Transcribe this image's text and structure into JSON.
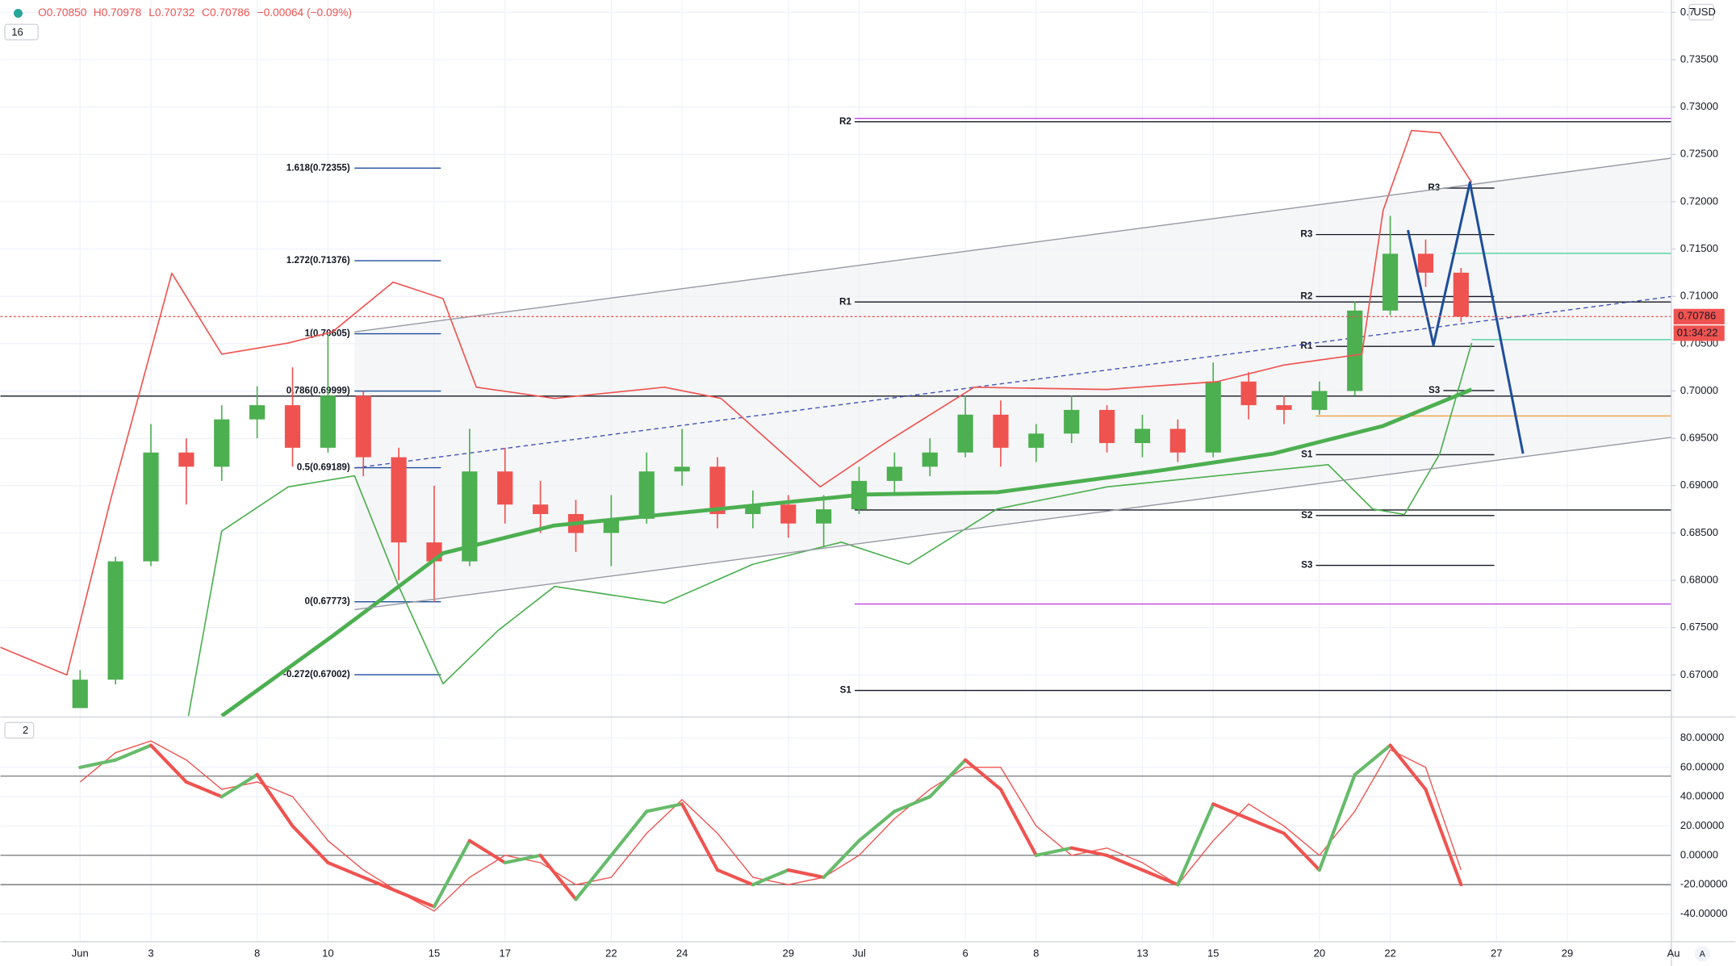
{
  "chart_data": {
    "type": "candlestick",
    "header": {
      "open": "O0.70850",
      "high": "H0.70978",
      "low": "L0.70732",
      "close": "C0.70786",
      "change": "−0.00064 (−0.09%)",
      "main_count": "16",
      "osc_count": "2",
      "currency": "USD",
      "auto": "A"
    },
    "last_price": {
      "value": 0.70786,
      "label": "0.70786",
      "timer": "01:34:22"
    },
    "xlim": [
      -2.25,
      44.94
    ],
    "xticks": [
      {
        "value": 0,
        "label": "Jun"
      },
      {
        "value": 2,
        "label": "3"
      },
      {
        "value": 5,
        "label": "8"
      },
      {
        "value": 7,
        "label": "10"
      },
      {
        "value": 10,
        "label": "15"
      },
      {
        "value": 12,
        "label": "17"
      },
      {
        "value": 15,
        "label": "22"
      },
      {
        "value": 17,
        "label": "24"
      },
      {
        "value": 20,
        "label": "29"
      },
      {
        "value": 22,
        "label": "Jul"
      },
      {
        "value": 25,
        "label": "6"
      },
      {
        "value": 27,
        "label": "8"
      },
      {
        "value": 30,
        "label": "13"
      },
      {
        "value": 32,
        "label": "15"
      },
      {
        "value": 35,
        "label": "20"
      },
      {
        "value": 37,
        "label": "22"
      },
      {
        "value": 40,
        "label": "27"
      },
      {
        "value": 42,
        "label": "29"
      },
      {
        "value": 45,
        "label": "Au"
      }
    ],
    "ylim": [
      0.66567,
      0.74131
    ],
    "yticks": [
      {
        "value": 0.67,
        "label": "0.67000"
      },
      {
        "value": 0.675,
        "label": "0.67500"
      },
      {
        "value": 0.68,
        "label": "0.68000"
      },
      {
        "value": 0.685,
        "label": "0.68500"
      },
      {
        "value": 0.69,
        "label": "0.69000"
      },
      {
        "value": 0.695,
        "label": "0.69500"
      },
      {
        "value": 0.7,
        "label": "0.70000"
      },
      {
        "value": 0.705,
        "label": "0.70500"
      },
      {
        "value": 0.71,
        "label": "0.71000"
      },
      {
        "value": 0.715,
        "label": "0.71500"
      },
      {
        "value": 0.72,
        "label": "0.72000"
      },
      {
        "value": 0.725,
        "label": "0.72500"
      },
      {
        "value": 0.73,
        "label": "0.73000"
      },
      {
        "value": 0.735,
        "label": "0.73500"
      },
      {
        "value": 0.74,
        "label": "0.7"
      }
    ],
    "candles": {
      "x": [
        0,
        1,
        2,
        3,
        4,
        5,
        6,
        7,
        8,
        9,
        10,
        11,
        12,
        13,
        14,
        15,
        16,
        17,
        18,
        19,
        20,
        21,
        22,
        23,
        24,
        25,
        26,
        27,
        28,
        29,
        30,
        31,
        32,
        33,
        34,
        35,
        36,
        37,
        38,
        39
      ],
      "open": [
        0.6665,
        0.6695,
        0.682,
        0.6935,
        0.692,
        0.697,
        0.6985,
        0.694,
        0.6995,
        0.693,
        0.684,
        0.682,
        0.6915,
        0.688,
        0.687,
        0.685,
        0.6865,
        0.6915,
        0.692,
        0.687,
        0.688,
        0.686,
        0.6875,
        0.6905,
        0.692,
        0.6935,
        0.6975,
        0.694,
        0.6955,
        0.698,
        0.6945,
        0.696,
        0.6935,
        0.701,
        0.6985,
        0.698,
        0.7,
        0.7085,
        0.7145,
        0.7125
      ],
      "high": [
        0.6705,
        0.6825,
        0.6965,
        0.695,
        0.6985,
        0.7005,
        0.7025,
        0.706,
        0.7,
        0.694,
        0.69,
        0.696,
        0.694,
        0.6905,
        0.6885,
        0.689,
        0.6935,
        0.696,
        0.693,
        0.6895,
        0.689,
        0.689,
        0.692,
        0.6935,
        0.695,
        0.6995,
        0.699,
        0.6965,
        0.6995,
        0.6985,
        0.6975,
        0.697,
        0.703,
        0.702,
        0.6995,
        0.701,
        0.7095,
        0.7185,
        0.716,
        0.713
      ],
      "low": [
        0.6665,
        0.669,
        0.6815,
        0.688,
        0.6905,
        0.695,
        0.692,
        0.6935,
        0.691,
        0.68,
        0.6777,
        0.6815,
        0.686,
        0.685,
        0.683,
        0.6815,
        0.686,
        0.69,
        0.6855,
        0.6855,
        0.6845,
        0.6835,
        0.687,
        0.689,
        0.691,
        0.693,
        0.692,
        0.6925,
        0.6945,
        0.6935,
        0.693,
        0.6925,
        0.693,
        0.697,
        0.6965,
        0.6975,
        0.6995,
        0.708,
        0.711,
        0.7073
      ],
      "close": [
        0.6695,
        0.682,
        0.6935,
        0.692,
        0.697,
        0.6985,
        0.694,
        0.6995,
        0.693,
        0.684,
        0.682,
        0.6915,
        0.688,
        0.687,
        0.685,
        0.6865,
        0.6915,
        0.692,
        0.687,
        0.688,
        0.686,
        0.6875,
        0.6905,
        0.692,
        0.6935,
        0.6975,
        0.694,
        0.6955,
        0.698,
        0.6945,
        0.696,
        0.6935,
        0.701,
        0.6985,
        0.698,
        0.7,
        0.7085,
        0.7145,
        0.7125,
        0.70786
      ],
      "up_color": "#4caf50",
      "down_color": "#ef5350"
    },
    "lines": [
      {
        "name_color": "ma",
        "color": "#4caf50",
        "width": 3.5,
        "x": [
          4,
          7.125,
          10.25,
          13.375,
          18.06,
          22.125,
          25.9,
          30.56,
          33.69,
          36.8,
          39.3
        ],
        "values": [
          0.66567,
          0.6741,
          0.68286,
          0.68578,
          0.68754,
          0.68906,
          0.6893,
          0.69163,
          0.69338,
          0.69631,
          0.70016
        ]
      },
      {
        "name_color": "upper",
        "color": "#ef5350",
        "width": 1.2,
        "x": [
          -2.25,
          -0.375,
          0.875,
          2.59,
          4,
          5.875,
          7.125,
          8.84,
          10.25,
          11.19,
          13.4,
          16.5,
          18.1,
          20.9,
          22.75,
          25.25,
          29,
          32.1,
          34,
          36.2,
          36.8,
          37.6,
          38.4,
          39.3
        ],
        "values": [
          0.67292,
          0.67,
          0.68871,
          0.71244,
          0.7039,
          0.70507,
          0.70624,
          0.7115,
          0.70975,
          0.7004,
          0.69922,
          0.7004,
          0.69922,
          0.68987,
          0.69455,
          0.7004,
          0.70016,
          0.70098,
          0.70274,
          0.7039,
          0.7191,
          0.72752,
          0.72728,
          0.72202
        ]
      },
      {
        "name_color": "lower",
        "color": "#4caf50",
        "width": 1.2,
        "x": [
          3.06,
          4,
          5.875,
          7.75,
          9,
          10.25,
          11.8,
          13.4,
          16.5,
          19,
          21.5,
          23.4,
          25.9,
          29,
          32.1,
          35.25,
          36.5,
          37.4,
          38.4,
          39.3
        ],
        "values": [
          0.66567,
          0.6852,
          0.68987,
          0.69104,
          0.67935,
          0.66907,
          0.67468,
          0.67935,
          0.6776,
          0.68169,
          0.68403,
          0.68169,
          0.68754,
          0.68987,
          0.69104,
          0.69221,
          0.68754,
          0.68695,
          0.69338,
          0.70507
        ]
      },
      {
        "name_color": "channel",
        "color": "#9598a1",
        "width": 1,
        "x": [
          7.75,
          44.94
        ],
        "values": [
          0.70624,
          0.7246
        ]
      },
      {
        "name_color": "channel",
        "color": "#9598a1",
        "width": 1,
        "x": [
          7.75,
          44.94
        ],
        "values": [
          0.6769,
          0.6951
        ]
      },
      {
        "name_color": "projection",
        "color": "#1e4e9c",
        "width": 2.2,
        "x": [
          37.5,
          38.22,
          39.25,
          40.75
        ],
        "values": [
          0.717,
          0.70484,
          0.72202,
          0.69338
        ]
      }
    ],
    "midline": {
      "x": [
        7.75,
        44.94
      ],
      "values": [
        0.69186,
        0.70998
      ],
      "color": "#3f51b5"
    },
    "fib": [
      {
        "value": 0.72355,
        "label": "1.618(0.72355)"
      },
      {
        "value": 0.71376,
        "label": "1.272(0.71376)"
      },
      {
        "value": 0.70605,
        "label": "1(0.70605)"
      },
      {
        "value": 0.69999,
        "label": "0.786(0.69999)"
      },
      {
        "value": 0.69189,
        "label": "0.5(0.69189)"
      },
      {
        "value": 0.67773,
        "label": "0(0.67773)"
      },
      {
        "value": 0.67002,
        "label": "-0.272(0.67002)"
      }
    ],
    "fib_x": [
      7.75,
      10.19
    ],
    "pivots": [
      {
        "value": 0.72845,
        "label": "R2",
        "x": [
          21.875,
          44.94
        ]
      },
      {
        "value": 0.7094,
        "label": "R1",
        "x": [
          21.875,
          44.94
        ]
      },
      {
        "value": 0.66836,
        "label": "S1",
        "x": [
          21.875,
          44.94
        ]
      },
      {
        "value": 0.72144,
        "label": "R3",
        "x": [
          38.5,
          39.94
        ]
      },
      {
        "value": 0.71653,
        "label": "R3",
        "x": [
          34.9,
          39.94
        ]
      },
      {
        "value": 0.70998,
        "label": "R2",
        "x": [
          34.9,
          39.94
        ]
      },
      {
        "value": 0.70472,
        "label": "R1",
        "x": [
          34.9,
          39.94
        ]
      },
      {
        "value": 0.70005,
        "label": "S3",
        "x": [
          38.5,
          39.94
        ]
      },
      {
        "value": 0.69327,
        "label": "S1",
        "x": [
          34.9,
          39.94
        ]
      },
      {
        "value": 0.68684,
        "label": "S2",
        "x": [
          34.9,
          39.94
        ]
      },
      {
        "value": 0.68158,
        "label": "S3",
        "x": [
          34.9,
          39.94
        ]
      }
    ],
    "levels": [
      {
        "value": 0.7288,
        "color": "#c040e0",
        "x": [
          21.875,
          44.94
        ]
      },
      {
        "value": 0.6775,
        "color": "#c040e0",
        "x": [
          21.875,
          44.94
        ]
      },
      {
        "value": 0.69946,
        "color": "#131722",
        "x": [
          -2.25,
          44.94
        ]
      },
      {
        "value": 0.68743,
        "color": "#131722",
        "x": [
          21.875,
          44.94
        ]
      },
      {
        "value": 0.71454,
        "color": "#4dd0a0",
        "x": [
          38.7,
          44.94
        ]
      },
      {
        "value": 0.70543,
        "color": "#4dd0a0",
        "x": [
          39.3,
          44.94
        ]
      },
      {
        "value": 0.69736,
        "color": "#f0a040",
        "x": [
          34.9,
          44.94
        ]
      }
    ],
    "oscillator": {
      "ylim": [
        -58.1,
        92.8
      ],
      "yticks": [
        {
          "value": -40,
          "label": "-40.00000"
        },
        {
          "value": -20,
          "label": "-20.00000"
        },
        {
          "value": 0,
          "label": "0.00000"
        },
        {
          "value": 20,
          "label": "20.00000"
        },
        {
          "value": 40,
          "label": "40.00000"
        },
        {
          "value": 60,
          "label": "60.00000"
        },
        {
          "value": 80,
          "label": "80.00000"
        }
      ],
      "levels": [
        54,
        0,
        -20
      ],
      "x": [
        0,
        1,
        2,
        3,
        4,
        5,
        6,
        7,
        8,
        9,
        10,
        11,
        12,
        13,
        14,
        15,
        16,
        17,
        18,
        19,
        20,
        21,
        22,
        23,
        24,
        25,
        26,
        27,
        28,
        29,
        30,
        31,
        32,
        33,
        34,
        35,
        36,
        37,
        38,
        39
      ],
      "main": [
        60,
        65,
        75,
        50,
        40,
        55,
        20,
        -5,
        -15,
        -25,
        -35,
        10,
        -5,
        0,
        -30,
        0,
        30,
        35,
        -10,
        -20,
        -10,
        -15,
        10,
        30,
        40,
        65,
        45,
        0,
        5,
        0,
        -10,
        -20,
        35,
        25,
        15,
        -10,
        55,
        75,
        45,
        -20
      ],
      "signal": [
        50,
        70,
        78,
        65,
        45,
        50,
        40,
        10,
        -10,
        -25,
        -38,
        -15,
        0,
        -5,
        -20,
        -15,
        15,
        38,
        15,
        -15,
        -20,
        -15,
        0,
        25,
        45,
        60,
        60,
        20,
        0,
        5,
        -5,
        -20,
        10,
        35,
        20,
        0,
        30,
        72,
        60,
        -10
      ],
      "up_color": "#66bb6a",
      "down_color": "#ef5350",
      "signal_color": "#ef5350"
    }
  }
}
